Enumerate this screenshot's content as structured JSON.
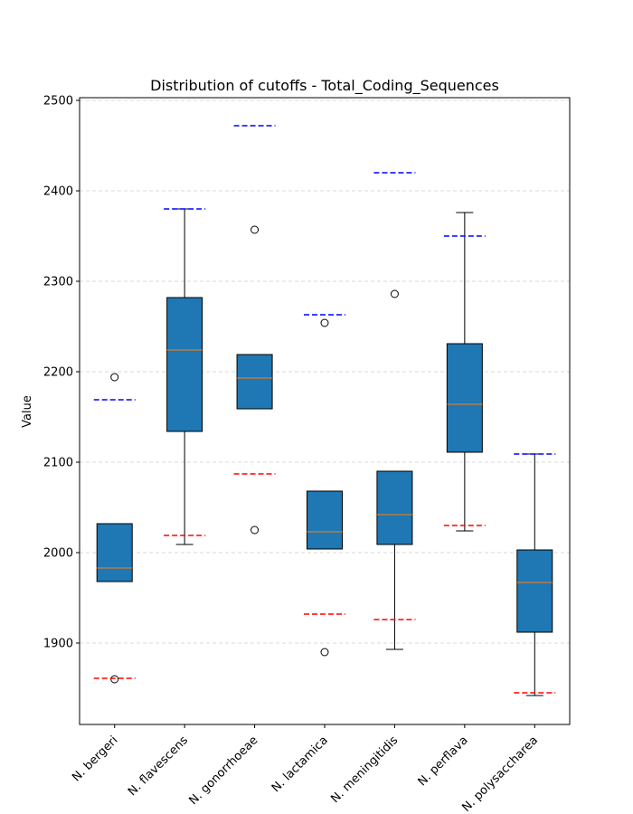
{
  "chart_data": {
    "type": "box",
    "title": "Distribution of cutoffs - Total_Coding_Sequences",
    "xlabel": "",
    "ylabel": "Value",
    "ylim": [
      1810,
      2503
    ],
    "yticks": [
      1900,
      2000,
      2100,
      2200,
      2300,
      2400,
      2500
    ],
    "grid": "y-dashed",
    "categories": [
      "N. bergeri",
      "N. flavescens",
      "N. gonorrhoeae",
      "N. lactamica",
      "N. meningitidis",
      "N. perflava",
      "N. polysaccharea"
    ],
    "boxes": [
      {
        "whisker_low": 1968,
        "q1": 1968,
        "median": 1983,
        "q3": 2032,
        "whisker_high": 2032,
        "outliers": [
          2194,
          1860
        ],
        "upper_cutoff": 2169,
        "lower_cutoff": 1861
      },
      {
        "whisker_low": 2009,
        "q1": 2134,
        "median": 2224,
        "q3": 2282,
        "whisker_high": 2380,
        "outliers": [],
        "upper_cutoff": 2380,
        "lower_cutoff": 2019
      },
      {
        "whisker_low": 2159,
        "q1": 2159,
        "median": 2193,
        "q3": 2219,
        "whisker_high": 2219,
        "outliers": [
          2357,
          2025
        ],
        "upper_cutoff": 2472,
        "lower_cutoff": 2087
      },
      {
        "whisker_low": 2004,
        "q1": 2004,
        "median": 2023,
        "q3": 2068,
        "whisker_high": 2068,
        "outliers": [
          2254,
          1890
        ],
        "upper_cutoff": 2263,
        "lower_cutoff": 1932
      },
      {
        "whisker_low": 1893,
        "q1": 2009,
        "median": 2042,
        "q3": 2090,
        "whisker_high": 2090,
        "outliers": [
          2286
        ],
        "upper_cutoff": 2420,
        "lower_cutoff": 1926
      },
      {
        "whisker_low": 2024,
        "q1": 2111,
        "median": 2164,
        "q3": 2231,
        "whisker_high": 2376,
        "outliers": [],
        "upper_cutoff": 2350,
        "lower_cutoff": 2030
      },
      {
        "whisker_low": 1842,
        "q1": 1912,
        "median": 1967,
        "q3": 2003,
        "whisker_high": 2109,
        "outliers": [],
        "upper_cutoff": 2109,
        "lower_cutoff": 1845
      }
    ],
    "colors": {
      "box_fill": "#1f77b4",
      "median": "#ff7f0e",
      "upper_cutoff": "#0000ff",
      "lower_cutoff": "#ff0000",
      "grid": "#cccccc"
    }
  }
}
